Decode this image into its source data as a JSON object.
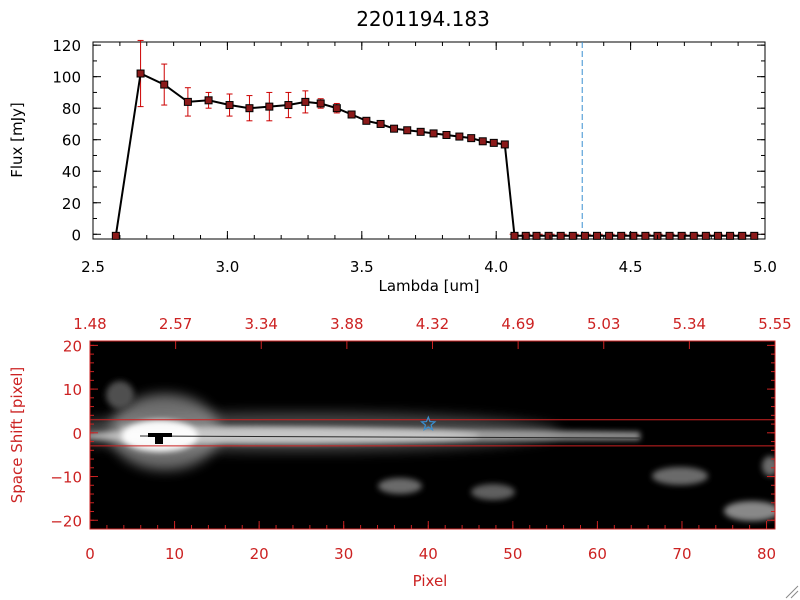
{
  "chart_data": [
    {
      "type": "line",
      "title": "2201194.183",
      "xlabel": "Lambda [um]",
      "ylabel": "Flux [mJy]",
      "xlim": [
        2.5,
        5.0
      ],
      "ylim": [
        -3,
        122
      ],
      "x_ticks": [
        2.5,
        3.0,
        3.5,
        4.0,
        4.5,
        5.0
      ],
      "x_tick_labels": [
        "2.5",
        "3.0",
        "3.5",
        "4.0",
        "4.5",
        "5.0"
      ],
      "y_ticks": [
        0,
        20,
        40,
        60,
        80,
        100,
        120
      ],
      "y_tick_labels": [
        "0",
        "20",
        "40",
        "60",
        "80",
        "100",
        "120"
      ],
      "reference_line_x": 4.32,
      "colors": {
        "line": "#000000",
        "marker_fill": "#8b1a1a",
        "error_bar": "#cc0000",
        "reference_line": "#3a8fd0",
        "zero_line": "#cc0000"
      },
      "series": [
        {
          "x": [
            2.585,
            2.677,
            2.765,
            2.853,
            2.93,
            3.008,
            3.082,
            3.156,
            3.227,
            3.29,
            3.347,
            3.407,
            3.462,
            3.517,
            3.57,
            3.62,
            3.669,
            3.719,
            3.767,
            3.815,
            3.863,
            3.907,
            3.95,
            3.991,
            4.032,
            4.068,
            4.11,
            4.15,
            4.195,
            4.24,
            4.285,
            4.33,
            4.375,
            4.42,
            4.465,
            4.51,
            4.555,
            4.6,
            4.645,
            4.69,
            4.735,
            4.78,
            4.825,
            4.87,
            4.915,
            4.96
          ],
          "y": [
            -1,
            102,
            95,
            84,
            85,
            82,
            80,
            81,
            82,
            84,
            83,
            80,
            76,
            72,
            70,
            67,
            66,
            65,
            64,
            63,
            62,
            61,
            59,
            58,
            57,
            -1,
            -1,
            -1,
            -1,
            -1,
            -1,
            -1,
            -1,
            -1,
            -1,
            -1,
            -1,
            -1,
            -1,
            -1,
            -1,
            -1,
            -1,
            -1,
            -1,
            -1
          ],
          "yerr": [
            0,
            21,
            13,
            9,
            5,
            7,
            8,
            9,
            8,
            7,
            3,
            3,
            2,
            2,
            2,
            1,
            1,
            1,
            1,
            1,
            1,
            1,
            1,
            1,
            1,
            0,
            0,
            0,
            0,
            0,
            0,
            0,
            0,
            0,
            0,
            0,
            0,
            0,
            0,
            0,
            0,
            0,
            0,
            0,
            0,
            0
          ]
        }
      ],
      "grid": false
    },
    {
      "type": "heatmap",
      "xlabel": "Pixel",
      "ylabel": "Space Shift [pixel]",
      "xlim": [
        0,
        81
      ],
      "ylim": [
        -22,
        21
      ],
      "x_ticks": [
        0,
        10,
        20,
        30,
        40,
        50,
        60,
        70,
        80
      ],
      "x_tick_labels": [
        "0",
        "10",
        "20",
        "30",
        "40",
        "50",
        "60",
        "70",
        "80"
      ],
      "y_ticks": [
        -20,
        -10,
        0,
        10,
        20
      ],
      "y_tick_labels": [
        "−20",
        "−10",
        "0",
        "10",
        "20"
      ],
      "top_axis_labels": [
        "1.48",
        "2.57",
        "3.34",
        "3.88",
        "4.32",
        "4.69",
        "5.03",
        "5.34",
        "5.55"
      ],
      "aperture_lines_y": [
        3,
        -3
      ],
      "star_marker": {
        "x": 40,
        "y": 2
      },
      "colors": {
        "axis": "#cc2222",
        "background": "#000000",
        "aperture": "#cc2222",
        "star": "#3a8fd0"
      },
      "grid": false
    }
  ]
}
